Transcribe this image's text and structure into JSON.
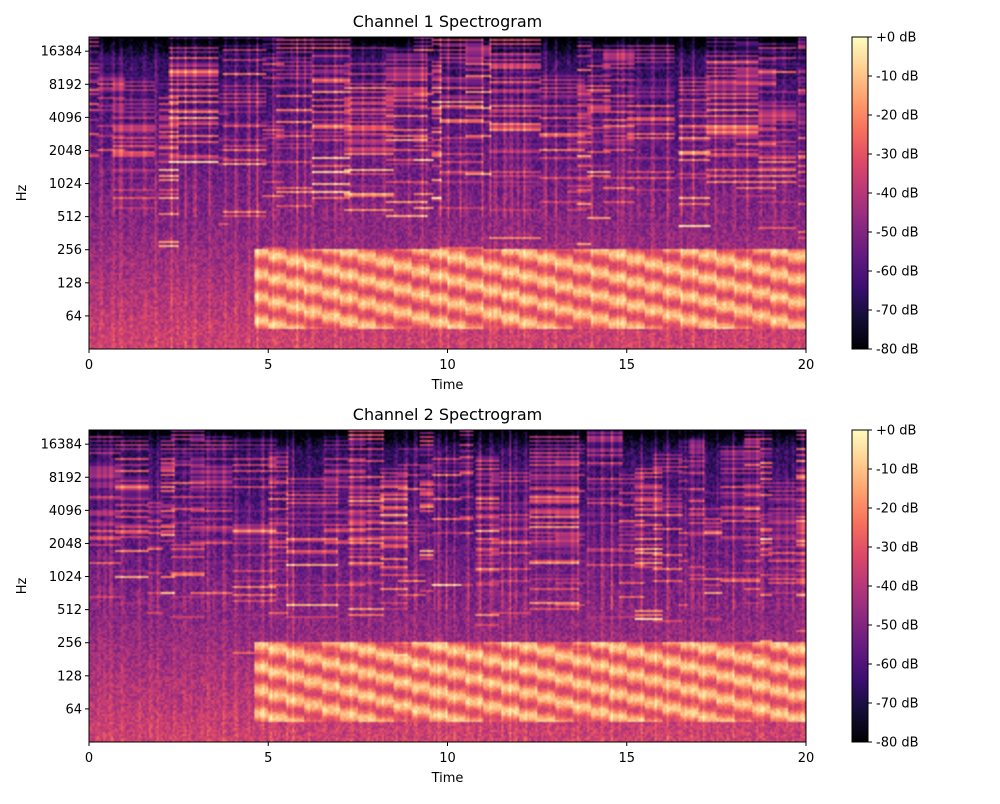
{
  "colormap": {
    "name": "magma",
    "stops": [
      "#000004",
      "#140e36",
      "#3b0f70",
      "#641a80",
      "#8c2981",
      "#b73779",
      "#de4968",
      "#f7705c",
      "#fe9f6d",
      "#fecf92",
      "#fcfdbf"
    ]
  },
  "chart_data": [
    {
      "type": "heatmap",
      "title": "Channel 1 Spectrogram",
      "xlabel": "Time",
      "ylabel": "Hz",
      "xlim": [
        0,
        20
      ],
      "x_ticks": [
        0,
        5,
        10,
        15,
        20
      ],
      "x_tick_labels": [
        "0",
        "5",
        "10",
        "15",
        "20"
      ],
      "y_scale": "log2",
      "ylim": [
        32,
        22050
      ],
      "y_ticks": [
        64,
        128,
        256,
        512,
        1024,
        2048,
        4096,
        8192,
        16384
      ],
      "y_tick_labels": [
        "64",
        "128",
        "256",
        "512",
        "1024",
        "2048",
        "4096",
        "8192",
        "16384"
      ],
      "colorbar": {
        "range_db": [
          -80,
          0
        ],
        "ticks": [
          0,
          -10,
          -20,
          -30,
          -40,
          -50,
          -60,
          -70,
          -80
        ],
        "tick_labels": [
          "+0 dB",
          "-10 dB",
          "-20 dB",
          "-30 dB",
          "-40 dB",
          "-50 dB",
          "-60 dB",
          "-70 dB",
          "-80 dB"
        ]
      },
      "seed": 7
    },
    {
      "type": "heatmap",
      "title": "Channel 2 Spectrogram",
      "xlabel": "Time",
      "ylabel": "Hz",
      "xlim": [
        0,
        20
      ],
      "x_ticks": [
        0,
        5,
        10,
        15,
        20
      ],
      "x_tick_labels": [
        "0",
        "5",
        "10",
        "15",
        "20"
      ],
      "y_scale": "log2",
      "ylim": [
        32,
        22050
      ],
      "y_ticks": [
        64,
        128,
        256,
        512,
        1024,
        2048,
        4096,
        8192,
        16384
      ],
      "y_tick_labels": [
        "64",
        "128",
        "256",
        "512",
        "1024",
        "2048",
        "4096",
        "8192",
        "16384"
      ],
      "colorbar": {
        "range_db": [
          -80,
          0
        ],
        "ticks": [
          0,
          -10,
          -20,
          -30,
          -40,
          -50,
          -60,
          -70,
          -80
        ],
        "tick_labels": [
          "+0 dB",
          "-10 dB",
          "-20 dB",
          "-30 dB",
          "-40 dB",
          "-50 dB",
          "-60 dB",
          "-70 dB",
          "-80 dB"
        ]
      },
      "seed": 11
    }
  ]
}
